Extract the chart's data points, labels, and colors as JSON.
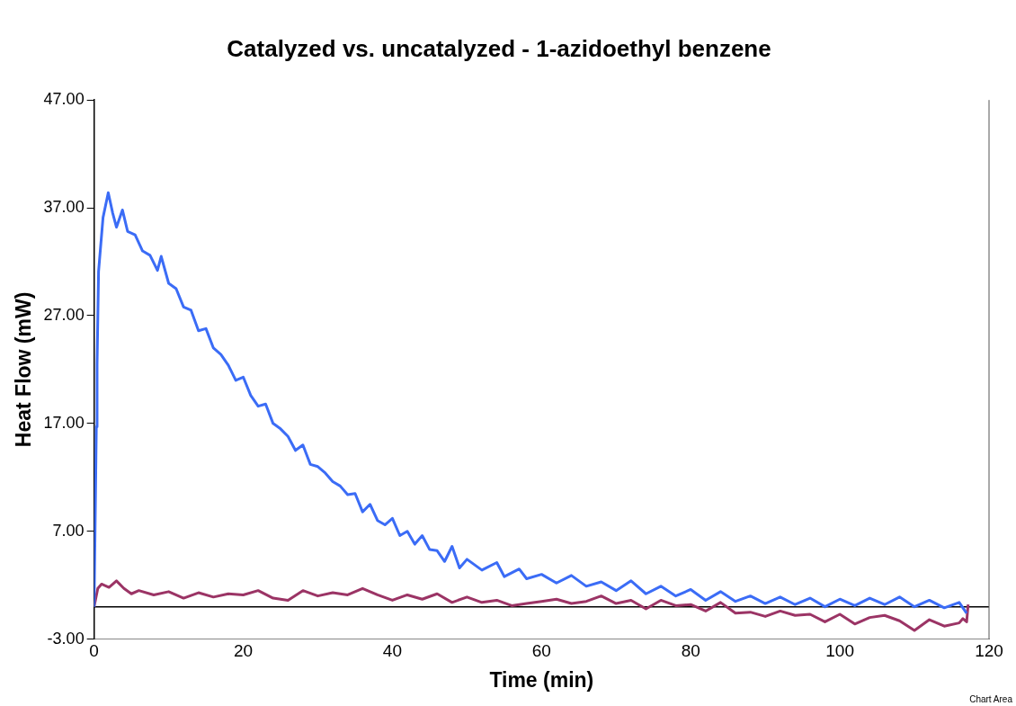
{
  "chart_data": {
    "type": "line",
    "title": "Catalyzed vs. uncatalyzed - 1-azidoethyl benzene",
    "xlabel": "Time (min)",
    "ylabel": "Heat Flow (mW)",
    "xlim": [
      0,
      120
    ],
    "xticks": [
      0,
      20,
      40,
      60,
      80,
      100,
      120
    ],
    "ylim": [
      -3,
      47
    ],
    "yticks": [
      {
        "value": -3,
        "label": "-3.00"
      },
      {
        "value": 7,
        "label": "7.00"
      },
      {
        "value": 17,
        "label": "17.00"
      },
      {
        "value": 27,
        "label": "27.00"
      },
      {
        "value": 37,
        "label": "37.00"
      },
      {
        "value": 47,
        "label": "47.00"
      }
    ],
    "grid": false,
    "legend": false,
    "marker": "none",
    "line_style": "solid",
    "ref_lines": [
      {
        "axis": "y",
        "value": 0,
        "color": "#000000"
      }
    ],
    "annotations": [
      "Chart Area"
    ],
    "series": [
      {
        "color": "#3b6cf6",
        "x": [
          0,
          0.3,
          0.4,
          0.6,
          1.2,
          1.9,
          2.5,
          3,
          3.8,
          4.5,
          5.5,
          6.5,
          7.5,
          8.5,
          9,
          10,
          11,
          12,
          13,
          14,
          15,
          16,
          17,
          18,
          19,
          20,
          21,
          22,
          23,
          24,
          25,
          26,
          27,
          28,
          29,
          30,
          31,
          32,
          33,
          34,
          35,
          36,
          37,
          38,
          39,
          40,
          41,
          42,
          43,
          44,
          45,
          46,
          47,
          48,
          49,
          50,
          52,
          54,
          55,
          57,
          58,
          60,
          62,
          64,
          66,
          68,
          70,
          72,
          74,
          76,
          78,
          80,
          82,
          84,
          86,
          88,
          90,
          92,
          94,
          96,
          98,
          100,
          102,
          104,
          106,
          108,
          110,
          112,
          114,
          116,
          117
        ],
        "values": [
          0,
          16.7,
          22.5,
          31.1,
          36.1,
          38.4,
          36.5,
          35.2,
          36.8,
          34.8,
          34.5,
          33,
          32.6,
          31.2,
          32.5,
          30,
          29.5,
          27.8,
          27.5,
          25.6,
          25.8,
          24,
          23.4,
          22.4,
          21,
          21.3,
          19.6,
          18.6,
          18.8,
          17,
          16.5,
          15.8,
          14.5,
          15,
          13.2,
          13,
          12.4,
          11.6,
          11.2,
          10.4,
          10.5,
          8.8,
          9.5,
          8,
          7.6,
          8.2,
          6.6,
          7,
          5.8,
          6.6,
          5.3,
          5.2,
          4.2,
          5.6,
          3.6,
          4.4,
          3.4,
          4.1,
          2.8,
          3.5,
          2.6,
          3,
          2.2,
          2.9,
          1.9,
          2.3,
          1.5,
          2.4,
          1.2,
          1.9,
          1,
          1.6,
          0.6,
          1.4,
          0.5,
          1,
          0.3,
          0.9,
          0.2,
          0.8,
          0,
          0.7,
          0.1,
          0.8,
          0.2,
          0.9,
          0,
          0.6,
          -0.1,
          0.4,
          -0.6
        ]
      },
      {
        "color": "#9b3465",
        "x": [
          0,
          0.5,
          1,
          2,
          3,
          4,
          5,
          6,
          8,
          10,
          12,
          14,
          16,
          18,
          20,
          22,
          24,
          26,
          28,
          30,
          32,
          34,
          36,
          38,
          40,
          42,
          44,
          46,
          48,
          50,
          52,
          54,
          56,
          58,
          60,
          62,
          64,
          66,
          68,
          70,
          72,
          74,
          76,
          78,
          80,
          82,
          84,
          86,
          88,
          90,
          92,
          94,
          96,
          98,
          100,
          102,
          104,
          106,
          108,
          110,
          112,
          114,
          116,
          116.5,
          117,
          117.2
        ],
        "values": [
          0,
          1.7,
          2.1,
          1.8,
          2.4,
          1.7,
          1.2,
          1.5,
          1.1,
          1.4,
          0.8,
          1.3,
          0.9,
          1.2,
          1.1,
          1.5,
          0.8,
          0.6,
          1.5,
          1,
          1.3,
          1.1,
          1.7,
          1.1,
          0.6,
          1.1,
          0.7,
          1.2,
          0.4,
          0.9,
          0.4,
          0.6,
          0.1,
          0.3,
          0.5,
          0.7,
          0.3,
          0.5,
          1,
          0.3,
          0.6,
          -0.2,
          0.6,
          0.1,
          0.2,
          -0.4,
          0.4,
          -0.6,
          -0.5,
          -0.9,
          -0.4,
          -0.8,
          -0.7,
          -1.4,
          -0.7,
          -1.6,
          -1,
          -0.8,
          -1.3,
          -2.2,
          -1.2,
          -1.8,
          -1.5,
          -1.1,
          -1.4,
          0.2
        ]
      }
    ]
  }
}
